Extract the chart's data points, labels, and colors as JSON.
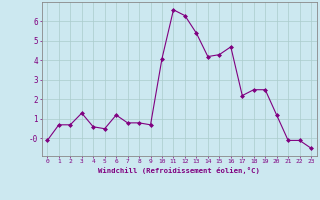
{
  "x": [
    0,
    1,
    2,
    3,
    4,
    5,
    6,
    7,
    8,
    9,
    10,
    11,
    12,
    13,
    14,
    15,
    16,
    17,
    18,
    19,
    20,
    21,
    22,
    23
  ],
  "y": [
    -0.1,
    0.7,
    0.7,
    1.3,
    0.6,
    0.5,
    1.2,
    0.8,
    0.8,
    0.7,
    4.1,
    6.6,
    6.3,
    5.4,
    4.2,
    4.3,
    4.7,
    2.2,
    2.5,
    2.5,
    1.2,
    -0.1,
    -0.1,
    -0.5
  ],
  "line_color": "#800080",
  "marker": "D",
  "marker_size": 2,
  "bg_color": "#cce8f0",
  "grid_color": "#aacccc",
  "xlabel": "Windchill (Refroidissement éolien,°C)",
  "xlabel_color": "#800080",
  "tick_color": "#800080",
  "xlim": [
    -0.5,
    23.5
  ],
  "ylim": [
    -0.9,
    7.0
  ],
  "xticks": [
    0,
    1,
    2,
    3,
    4,
    5,
    6,
    7,
    8,
    9,
    10,
    11,
    12,
    13,
    14,
    15,
    16,
    17,
    18,
    19,
    20,
    21,
    22,
    23
  ],
  "yticks": [
    0,
    1,
    2,
    3,
    4,
    5,
    6
  ],
  "ytick_labels": [
    "-0",
    "1",
    "2",
    "3",
    "4",
    "5",
    "6"
  ]
}
